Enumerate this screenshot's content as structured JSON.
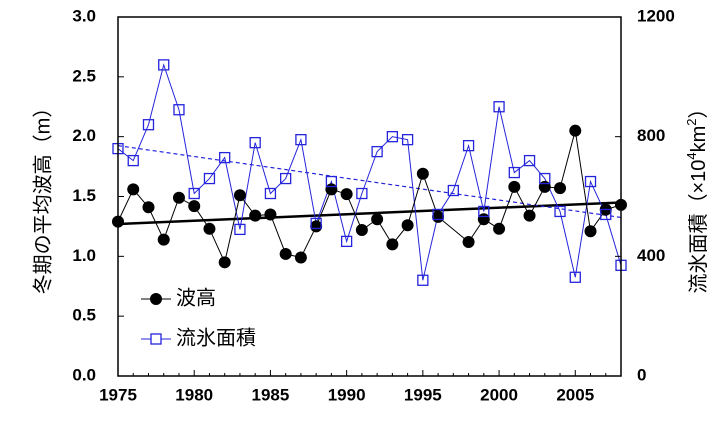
{
  "chart_data": {
    "type": "line",
    "title": "",
    "xlabel": "",
    "ylabel": "冬期の平均波高（m）",
    "y2label_prefix": "流氷面積（×10",
    "y2label_sup1": "4",
    "y2label_unit": "km",
    "y2label_sup2": "2",
    "y2label_suffix": "）",
    "xlim": [
      1975,
      2008
    ],
    "ylim": [
      0,
      3.0
    ],
    "y2lim": [
      0,
      1200
    ],
    "x_ticks": [
      1975,
      1980,
      1985,
      1990,
      1995,
      2000,
      2005
    ],
    "x_tick_labels": [
      "1975",
      "1980",
      "1985",
      "1990",
      "1995",
      "2000",
      "2005"
    ],
    "y_ticks": [
      0,
      0.5,
      1.0,
      1.5,
      2.0,
      2.5,
      3.0
    ],
    "y_tick_labels": [
      "0.0",
      "0.5",
      "1.0",
      "1.5",
      "2.0",
      "2.5",
      "3.0"
    ],
    "y2_ticks": [
      0,
      400,
      800,
      1200
    ],
    "y2_tick_labels": [
      "0",
      "400",
      "800",
      "1200"
    ],
    "grid": false,
    "legend_position": "bottom-left",
    "series": [
      {
        "name": "波高",
        "axis": "left",
        "marker": "filled-circle",
        "color": "#000000",
        "x": [
          1975,
          1976,
          1977,
          1978,
          1979,
          1980,
          1981,
          1982,
          1983,
          1984,
          1985,
          1986,
          1987,
          1988,
          1989,
          1990,
          1991,
          1992,
          1993,
          1994,
          1995,
          1996,
          1998,
          1999,
          2000,
          2001,
          2002,
          2003,
          2004,
          2005,
          2006,
          2007,
          2008
        ],
        "y": [
          1.29,
          1.56,
          1.41,
          1.14,
          1.49,
          1.42,
          1.23,
          0.95,
          1.51,
          1.34,
          1.35,
          1.02,
          0.99,
          1.25,
          1.56,
          1.52,
          1.22,
          1.31,
          1.1,
          1.26,
          1.69,
          1.33,
          1.12,
          1.31,
          1.23,
          1.58,
          1.34,
          1.58,
          1.57,
          2.05,
          1.21,
          1.39,
          1.43
        ],
        "trend": {
          "x": [
            1975,
            2008
          ],
          "y": [
            1.27,
            1.45
          ],
          "style": "solid"
        }
      },
      {
        "name": "流氷面積",
        "axis": "right",
        "marker": "open-square",
        "color": "#2424dc",
        "x": [
          1975,
          1976,
          1977,
          1978,
          1979,
          1980,
          1981,
          1982,
          1983,
          1984,
          1985,
          1986,
          1987,
          1988,
          1989,
          1990,
          1991,
          1992,
          1993,
          1994,
          1995,
          1996,
          1997,
          1998,
          1999,
          2000,
          2001,
          2002,
          2003,
          2004,
          2005,
          2006,
          2007,
          2008
        ],
        "y": [
          760,
          720,
          840,
          1040,
          890,
          610,
          660,
          730,
          490,
          780,
          610,
          660,
          790,
          510,
          650,
          450,
          610,
          750,
          800,
          790,
          320,
          540,
          620,
          770,
          550,
          900,
          680,
          720,
          660,
          550,
          330,
          650,
          540,
          370
        ],
        "trend": {
          "x": [
            1975,
            2008
          ],
          "y": [
            770,
            530
          ],
          "style": "dashed"
        }
      }
    ]
  }
}
